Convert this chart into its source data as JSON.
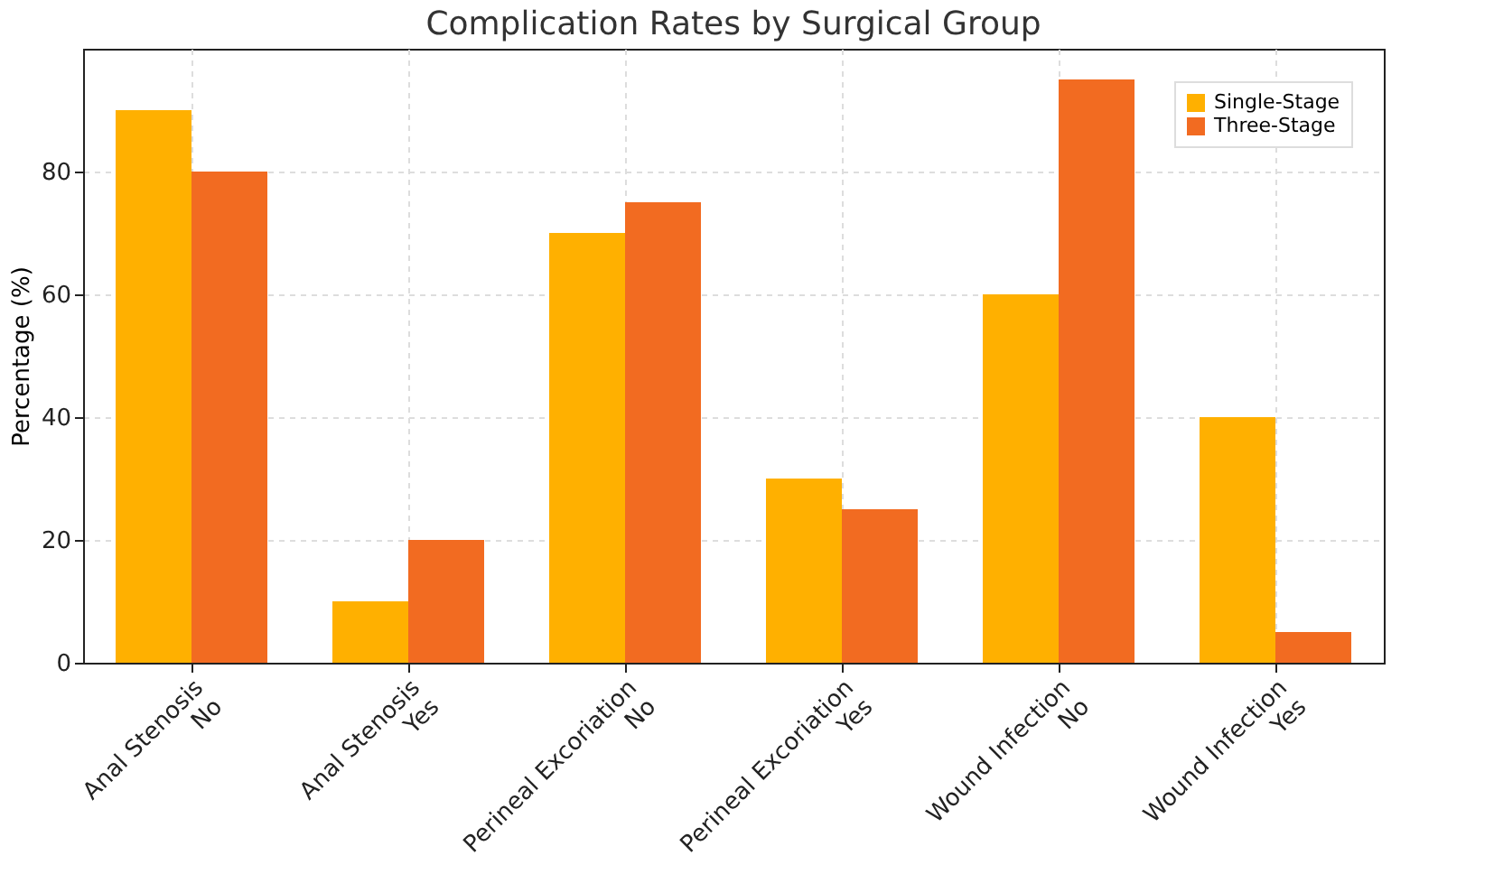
{
  "chart_data": {
    "type": "bar",
    "title": "Complication Rates by Surgical Group",
    "ylabel": "Percentage (%)",
    "categories": [
      "Anal Stenosis\nNo",
      "Anal Stenosis\nYes",
      "Perineal Excoriation\nNo",
      "Perineal Excoriation\nYes",
      "Wound Infection\nNo",
      "Wound Infection\nYes"
    ],
    "series": [
      {
        "name": "Single-Stage",
        "color": "#ffb000",
        "values": [
          90,
          10,
          70,
          30,
          60,
          40
        ]
      },
      {
        "name": "Three-Stage",
        "color": "#f26b21",
        "values": [
          80,
          20,
          75,
          25,
          95,
          5
        ]
      }
    ],
    "ylim": [
      0,
      100
    ],
    "yticks": [
      0,
      20,
      40,
      60,
      80
    ],
    "grid": true,
    "legend": "top right"
  }
}
